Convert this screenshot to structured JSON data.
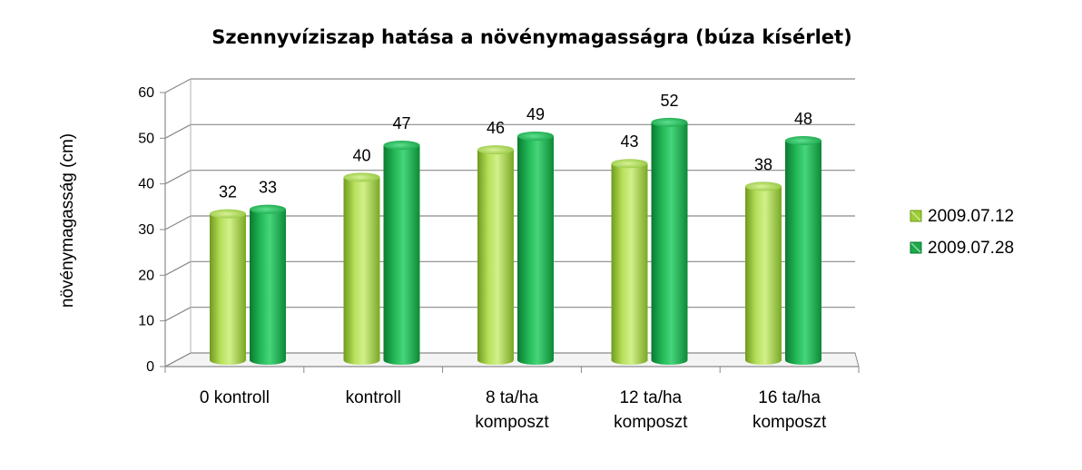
{
  "chart_data": {
    "type": "bar",
    "title": "Szennyvíziszap hatása a növénymagasságra (búza kísérlet)",
    "xlabel": "",
    "ylabel": "növénymagasság (cm)",
    "ylim": [
      0,
      60
    ],
    "yticks": [
      0,
      10,
      20,
      30,
      40,
      50,
      60
    ],
    "grid": true,
    "legend_position": "right",
    "categories": [
      [
        "0 kontroll"
      ],
      [
        "kontroll"
      ],
      [
        "8 ta/ha",
        "komposzt"
      ],
      [
        "12 ta/ha",
        "komposzt"
      ],
      [
        "16 ta/ha",
        "komposzt"
      ]
    ],
    "series": [
      {
        "name": "2009.07.12",
        "color": "#9acd32",
        "values": [
          32,
          40,
          46,
          43,
          38
        ]
      },
      {
        "name": "2009.07.28",
        "color": "#1aa84a",
        "values": [
          33,
          47,
          49,
          52,
          48
        ]
      }
    ]
  }
}
